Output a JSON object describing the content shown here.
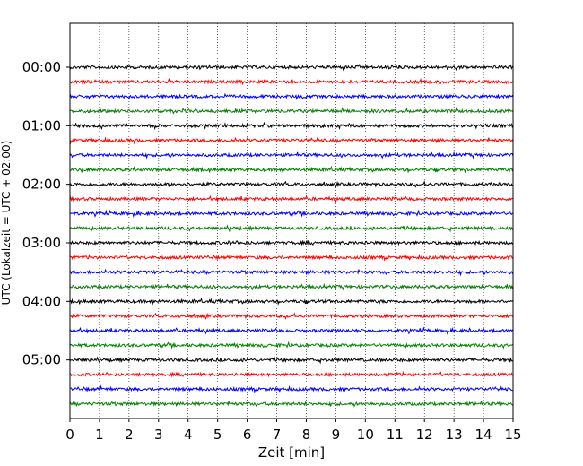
{
  "chart_data": {
    "type": "line",
    "title": "",
    "xlabel": "Zeit  [min]",
    "ylabel": "UTC (Lokalzeit = UTC + 02:00)",
    "xlim": [
      0,
      15
    ],
    "x_ticks": [
      "0",
      "1",
      "2",
      "3",
      "4",
      "5",
      "6",
      "7",
      "8",
      "9",
      "10",
      "11",
      "12",
      "13",
      "14",
      "15"
    ],
    "y_tick_labels": [
      "00:00",
      "01:00",
      "02:00",
      "03:00",
      "04:00",
      "05:00"
    ],
    "ylim_minutes_of_day": [
      -45,
      360
    ],
    "vertical_grid": "dotted, every minute",
    "trace_spacing_minutes": 15,
    "trace_colors": [
      "#000000",
      "#ff0000",
      "#0000ff",
      "#008000"
    ],
    "series": [
      {
        "start": "00:00",
        "color": "#000000"
      },
      {
        "start": "00:15",
        "color": "#ff0000"
      },
      {
        "start": "00:30",
        "color": "#0000ff"
      },
      {
        "start": "00:45",
        "color": "#008000"
      },
      {
        "start": "01:00",
        "color": "#000000"
      },
      {
        "start": "01:15",
        "color": "#ff0000"
      },
      {
        "start": "01:30",
        "color": "#0000ff"
      },
      {
        "start": "01:45",
        "color": "#008000"
      },
      {
        "start": "02:00",
        "color": "#000000"
      },
      {
        "start": "02:15",
        "color": "#ff0000"
      },
      {
        "start": "02:30",
        "color": "#0000ff"
      },
      {
        "start": "02:45",
        "color": "#008000"
      },
      {
        "start": "03:00",
        "color": "#000000"
      },
      {
        "start": "03:15",
        "color": "#ff0000"
      },
      {
        "start": "03:30",
        "color": "#0000ff"
      },
      {
        "start": "03:45",
        "color": "#008000"
      },
      {
        "start": "04:00",
        "color": "#000000"
      },
      {
        "start": "04:15",
        "color": "#ff0000"
      },
      {
        "start": "04:30",
        "color": "#0000ff"
      },
      {
        "start": "04:45",
        "color": "#008000"
      },
      {
        "start": "05:00",
        "color": "#000000"
      },
      {
        "start": "05:15",
        "color": "#ff0000"
      },
      {
        "start": "05:30",
        "color": "#0000ff"
      },
      {
        "start": "05:45",
        "color": "#008000"
      }
    ]
  }
}
